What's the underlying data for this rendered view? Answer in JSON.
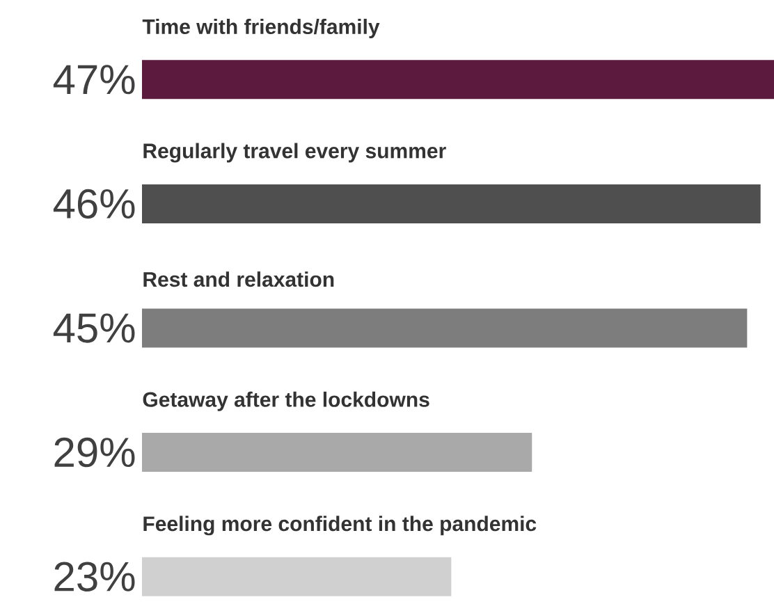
{
  "chart_data": {
    "type": "bar",
    "orientation": "horizontal",
    "categories": [
      "Time with friends/family",
      "Regularly travel every summer",
      "Rest and relaxation",
      "Getaway after the lockdowns",
      "Feeling more confident in the pandemic"
    ],
    "values": [
      47,
      46,
      45,
      29,
      23
    ],
    "value_labels": [
      "47%",
      "46%",
      "45%",
      "29%",
      "23%"
    ],
    "colors": [
      "#5b1a3e",
      "#4f4f4f",
      "#7d7d7d",
      "#a9a9a9",
      "#d0d0d0"
    ]
  }
}
